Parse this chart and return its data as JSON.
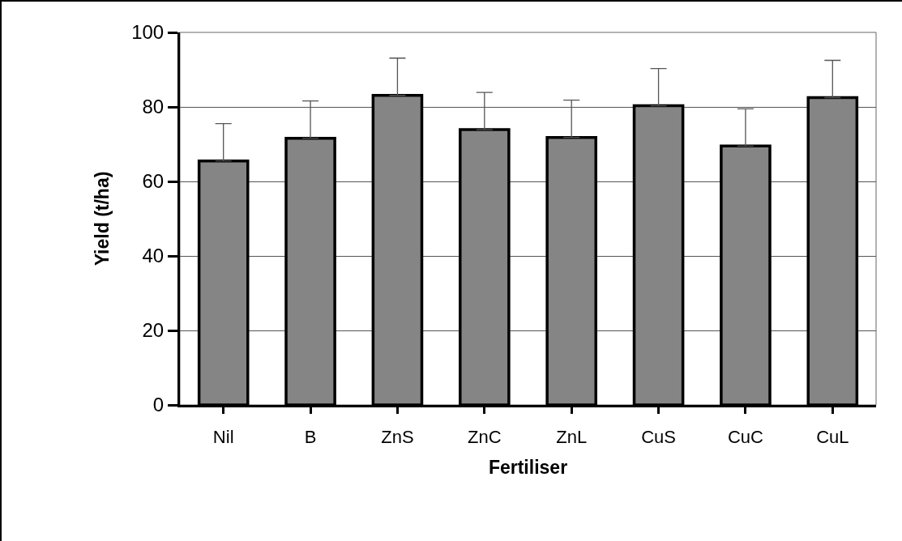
{
  "chart_data": {
    "type": "bar",
    "xlabel": "Fertiliser",
    "ylabel": "Yield (t/ha)",
    "categories": [
      "Nil",
      "B",
      "ZnS",
      "ZnC",
      "ZnL",
      "CuS",
      "CuC",
      "CuL"
    ],
    "values": [
      65.5,
      71.6,
      83.1,
      73.9,
      71.8,
      80.3,
      69.5,
      82.5
    ],
    "errors": [
      [
        65.5,
        75.5
      ],
      [
        71.6,
        81.6
      ],
      [
        83.1,
        93.1
      ],
      [
        73.9,
        83.9
      ],
      [
        71.8,
        81.8
      ],
      [
        80.3,
        90.3
      ],
      [
        69.5,
        79.5
      ],
      [
        82.5,
        92.5
      ]
    ],
    "color": "#858585",
    "ylim": [
      0,
      100
    ],
    "yticks": [
      0,
      20,
      40,
      60,
      80,
      100
    ],
    "grid": "y"
  }
}
